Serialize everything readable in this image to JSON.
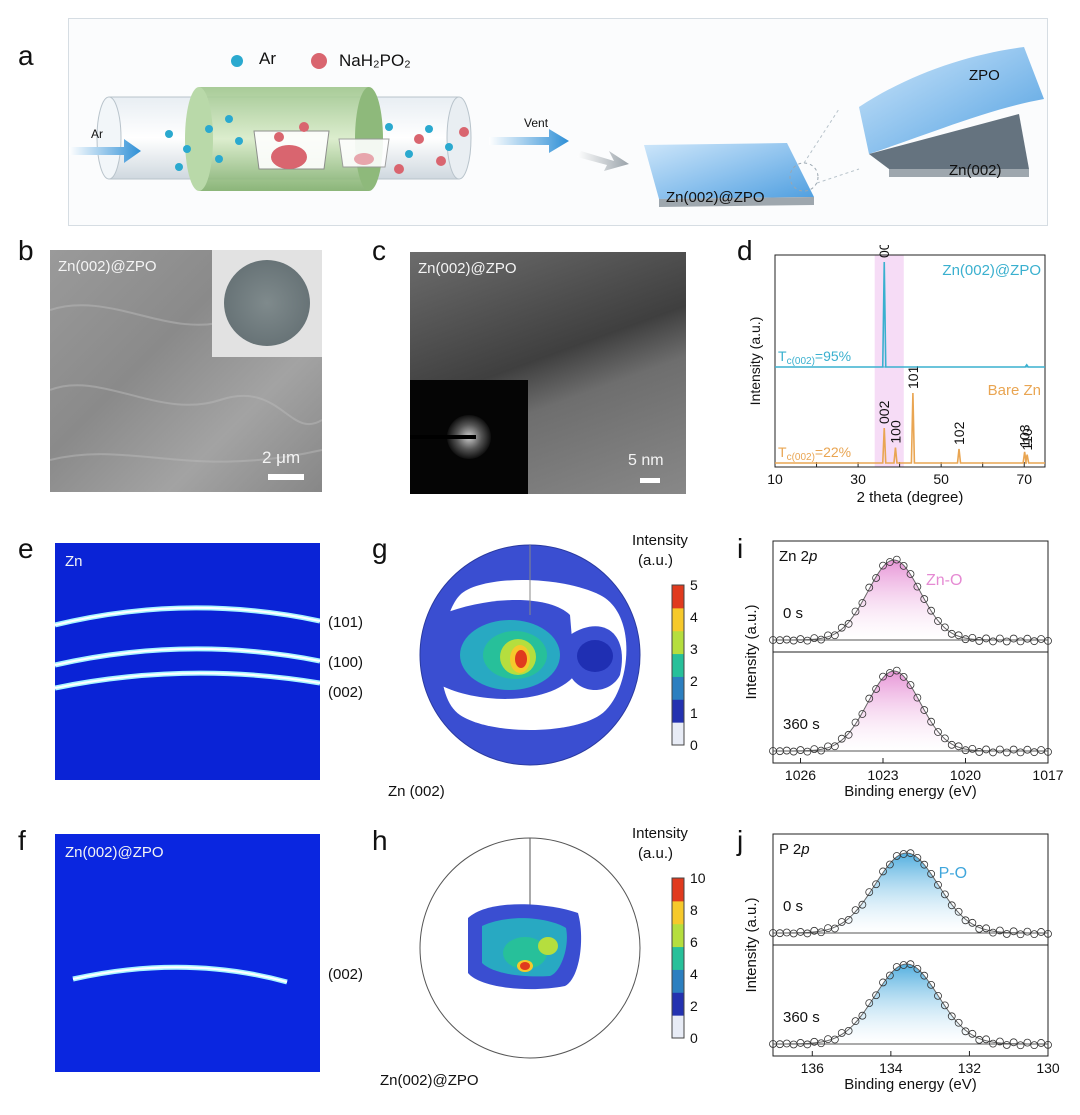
{
  "panel_letters": [
    "a",
    "b",
    "c",
    "d",
    "e",
    "f",
    "g",
    "h",
    "i",
    "j"
  ],
  "panel_a": {
    "legend": [
      {
        "label": "Ar",
        "color": "#2aa9cf"
      },
      {
        "label": "NaH₂PO₂",
        "color": "#d9656f"
      }
    ],
    "in_label": "Ar",
    "out_label": "Vent",
    "film_label": "Zn(002)@ZPO",
    "top_label": "ZPO",
    "bottom_label": "Zn(002)"
  },
  "panel_b": {
    "title": "Zn(002)@ZPO",
    "scale": "2 μm"
  },
  "panel_c": {
    "title": "Zn(002)@ZPO",
    "scale": "5 nm"
  },
  "panel_e": {
    "title": "Zn",
    "rings": [
      "(101)",
      "(100)",
      "(002)"
    ]
  },
  "panel_f": {
    "title": "Zn(002)@ZPO",
    "rings": [
      "(002)"
    ]
  },
  "panel_g": {
    "colorbar_title_1": "Intensity",
    "colorbar_title_2": "(a.u.)",
    "ticks": [
      "5",
      "4",
      "3",
      "2",
      "1",
      "0"
    ],
    "caption": "Zn (002)"
  },
  "panel_h": {
    "colorbar_title_1": "Intensity",
    "colorbar_title_2": "(a.u.)",
    "ticks": [
      "10",
      "8",
      "6",
      "4",
      "2",
      "0"
    ],
    "caption": "Zn(002)@ZPO"
  },
  "chart_data": [
    {
      "panel": "d",
      "type": "line",
      "xlabel": "2 theta (degree)",
      "ylabel": "Intensity (a.u.)",
      "xlim": [
        10,
        75
      ],
      "xticks": [
        10,
        20,
        30,
        40,
        50,
        60,
        70
      ],
      "xtick_labels": [
        "10",
        "",
        "30",
        "",
        "50",
        "",
        "70"
      ],
      "highlight_range": [
        34,
        41
      ],
      "series": [
        {
          "name": "Zn(002)@ZPO",
          "color": "#3ab0cf",
          "annotation": "T_c(002)=95%",
          "tc_main": "T",
          "tc_sub": "c(002)",
          "tc_val": "=95%",
          "peaks": [
            {
              "x": 36.3,
              "h": 1.0,
              "label": "002"
            },
            {
              "x": 70.6,
              "h": 0.02,
              "label": ""
            }
          ]
        },
        {
          "name": "Bare Zn",
          "color": "#e9a552",
          "annotation": "T_c(002)=22%",
          "tc_main": "T",
          "tc_sub": "c(002)",
          "tc_val": "=22%",
          "peaks": [
            {
              "x": 36.3,
              "h": 0.5,
              "label": "002"
            },
            {
              "x": 39.0,
              "h": 0.22,
              "label": "100"
            },
            {
              "x": 43.2,
              "h": 1.0,
              "label": "101"
            },
            {
              "x": 54.3,
              "h": 0.2,
              "label": "102"
            },
            {
              "x": 70.1,
              "h": 0.16,
              "label": "103"
            },
            {
              "x": 70.7,
              "h": 0.12,
              "label": "110"
            }
          ]
        }
      ]
    },
    {
      "panel": "i",
      "type": "line",
      "title_main": "Zn 2",
      "title_italic": "p",
      "xlabel": "Binding energy (eV)",
      "ylabel": "Intensity (a.u.)",
      "xlim": [
        1027,
        1017
      ],
      "xticks": [
        1026,
        1023,
        1020,
        1017
      ],
      "series": [
        {
          "name": "0 s",
          "peak_label": "Zn-O",
          "center": 1022.6,
          "sigma": 0.95
        },
        {
          "name": "360 s",
          "center": 1022.6,
          "sigma": 0.95
        }
      ],
      "color": "#e58ad3"
    },
    {
      "panel": "j",
      "type": "line",
      "title_main": "P 2",
      "title_italic": "p",
      "xlabel": "Binding energy (eV)",
      "ylabel": "Intensity (a.u.)",
      "xlim": [
        137,
        130
      ],
      "xticks": [
        136,
        134,
        132,
        130
      ],
      "series": [
        {
          "name": "0 s",
          "peak_label": "P-O",
          "center": 133.6,
          "sigma": 0.8
        },
        {
          "name": "360 s",
          "center": 133.6,
          "sigma": 0.8
        }
      ],
      "color": "#3fa6dc"
    }
  ]
}
